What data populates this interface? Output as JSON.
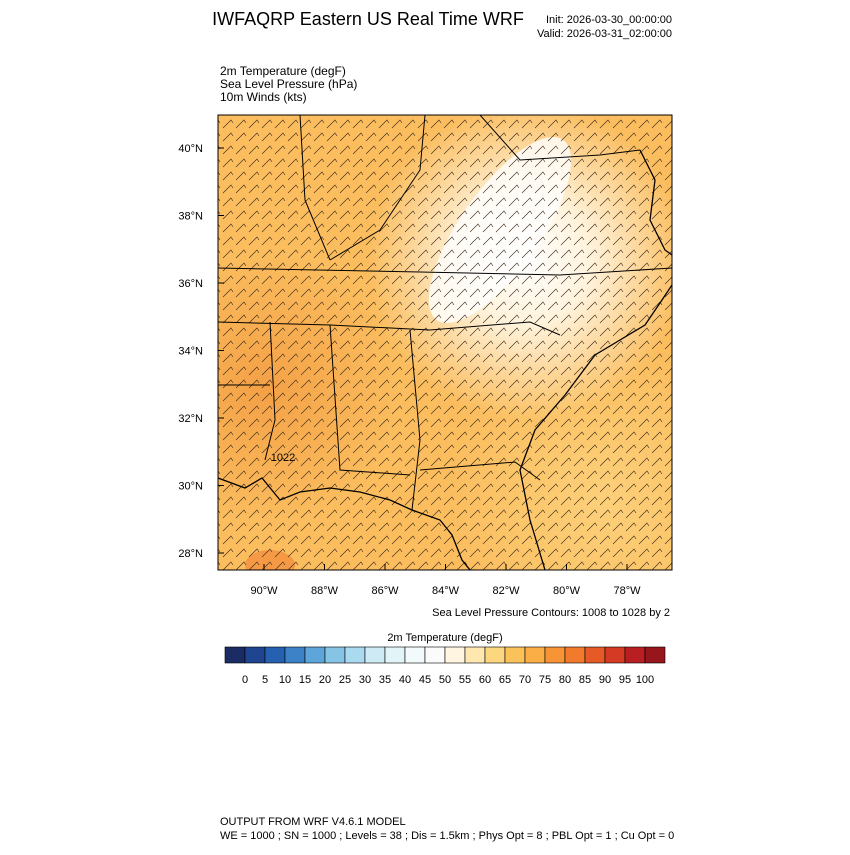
{
  "header": {
    "title": "IWFAQRP Eastern US Real Time WRF",
    "init": "Init: 2026-03-30_00:00:00",
    "valid": "Valid: 2026-03-31_02:00:00"
  },
  "fields": [
    "2m Temperature   (degF)",
    "Sea Level Pressure   (hPa)",
    "10m Winds   (kts)"
  ],
  "map": {
    "lat_labels": [
      "28°N",
      "30°N",
      "32°N",
      "34°N",
      "36°N",
      "38°N",
      "40°N"
    ],
    "lon_labels": [
      "90°W",
      "88°W",
      "86°W",
      "84°W",
      "82°W",
      "80°W",
      "78°W"
    ],
    "contour_label": "1022"
  },
  "contour_note": "Sea Level Pressure Contours: 1008 to 1028 by 2",
  "colorbar": {
    "title": "2m Temperature  (degF)",
    "labels": [
      0,
      5,
      10,
      15,
      20,
      25,
      30,
      35,
      40,
      45,
      50,
      55,
      60,
      65,
      70,
      75,
      80,
      85,
      90,
      95,
      100
    ],
    "colors": [
      "#1b2b63",
      "#1f4590",
      "#2660b0",
      "#3d82c6",
      "#5ea6d9",
      "#86c4e6",
      "#a9daf0",
      "#cdeaf5",
      "#e3f4f8",
      "#f2fafc",
      "#fbfbfb",
      "#fff5e0",
      "#fee8b0",
      "#fdd680",
      "#fcc25a",
      "#fbae45",
      "#f79436",
      "#f27a2c",
      "#e65a28",
      "#d43a24",
      "#b81e22",
      "#96161c"
    ]
  },
  "footer": {
    "line1": "OUTPUT FROM WRF V4.6.1 MODEL",
    "line2": "WE = 1000 ; SN = 1000 ; Levels = 38 ; Dis = 1.5km ; Phys Opt = 8 ; PBL Opt = 1 ; Cu Opt = 0"
  }
}
